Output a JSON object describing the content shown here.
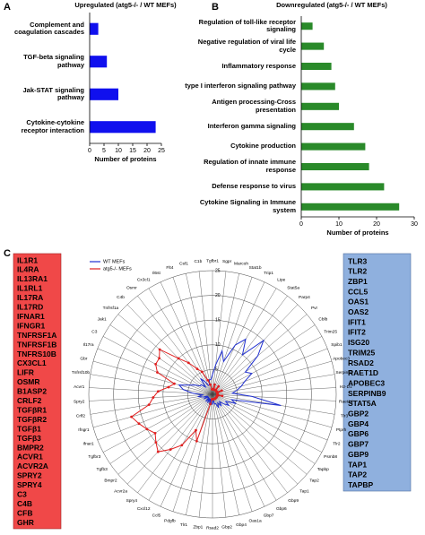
{
  "panels": [
    "A",
    "B",
    "C"
  ],
  "chart_data": [
    {
      "type": "barh",
      "title": "Upregulated (atg5-/- / WT MEFs)",
      "xlabel": "Number of proteins",
      "color": "#1010ee",
      "categories": [
        "Complement and coagulation cascades",
        "TGF-beta signaling pathway",
        "Jak-STAT signaling pathway",
        "Cytokine-cytokine receptor interaction"
      ],
      "values": [
        3,
        6,
        10,
        23
      ],
      "xlim": [
        0,
        25
      ],
      "xticks": [
        0,
        5,
        10,
        15,
        20,
        25
      ]
    },
    {
      "type": "barh",
      "title": "Downregulated (atg5-/- / WT MEFs)",
      "xlabel": "Number of proteins",
      "color": "#2a8a2a",
      "categories": [
        "Regulation of toll-like receptor signaling",
        "Negative regulation of viral life cycle",
        "Inflammatory response",
        "type I interferon signaling pathway",
        "Antigen processing-Cross presentation",
        "Interferon gamma signaling",
        "Cytokine production",
        "Regulation of innate immune response",
        "Defense response to virus",
        "Cytokine Signaling in Immune system"
      ],
      "values": [
        3,
        6,
        8,
        9,
        10,
        14,
        17,
        18,
        22,
        26
      ],
      "xlim": [
        0,
        30
      ],
      "xticks": [
        0,
        10,
        20,
        30
      ]
    },
    {
      "type": "radar",
      "ylim": [
        0,
        25
      ],
      "yticks": [
        0,
        5,
        10,
        15,
        20,
        25
      ],
      "legend": "top-left",
      "categories": [
        "Tgfbr1",
        "Sgpr",
        "Marcoh",
        "Stat1b",
        "Trip1",
        "Lipe",
        "Stat5a",
        "Parp4",
        "Pvr",
        "Cblb",
        "Trim25",
        "Spib1",
        "Apobec3",
        "Serpinb9",
        "H2-D1",
        "Raet1d",
        "Tlr3",
        "Ptprh",
        "Tlr2",
        "Psmb8",
        "Tapbp",
        "Tap2",
        "Tap1",
        "Gbp9",
        "Gbp6",
        "Gbp7",
        "Oas1a",
        "Gbp4",
        "Gbp2",
        "Rsad2",
        "Zbp1",
        "Tlr1",
        "Pdgfb",
        "Ccl5",
        "Cxcl12",
        "Spry4",
        "Acvr2a",
        "Bmpr2",
        "Tgfb3",
        "Tgfbr3",
        "Ifnar1",
        "Ifngr1",
        "Crlf2",
        "Spry2",
        "Acvr1",
        "Tnfrsf10b",
        "Gbr",
        "Il17ra",
        "C3",
        "Jak1",
        "Tnfrsf1a",
        "C4b",
        "Osmr",
        "Cx3cl1",
        "Il6st",
        "Flt4",
        "Csf1",
        "C1b"
      ],
      "series": [
        {
          "name": "WT MEFs",
          "color": "#2030d0",
          "marker": false,
          "values": [
            4,
            6,
            9,
            7,
            11,
            13,
            10,
            15,
            12,
            8,
            9,
            7,
            6,
            5,
            4,
            8,
            14,
            4,
            5,
            3,
            4,
            3,
            2,
            3,
            2,
            3,
            2,
            2,
            1,
            2,
            2,
            1,
            2,
            1,
            2,
            1,
            2,
            1,
            1,
            2,
            1,
            2,
            3,
            2,
            4,
            6,
            7,
            5,
            4,
            3,
            3,
            2,
            4,
            3,
            2,
            2,
            3,
            3
          ]
        },
        {
          "name": "atg5-/- MEFs",
          "color": "#e02020",
          "marker": true,
          "values": [
            1,
            1,
            2,
            1,
            1,
            1,
            2,
            1,
            1,
            1,
            1,
            2,
            1,
            1,
            1,
            1,
            2,
            1,
            1,
            1,
            1,
            1,
            1,
            1,
            1,
            1,
            1,
            1,
            1,
            1,
            1,
            2,
            10,
            8,
            12,
            14,
            16,
            15,
            14,
            15,
            16,
            17,
            13,
            12,
            11,
            9,
            8,
            12,
            13,
            13,
            14,
            10,
            8,
            6,
            5,
            3,
            2,
            1
          ]
        }
      ]
    }
  ],
  "gene_lists": {
    "left": [
      "IL1R1",
      "IL4RA",
      "IL13RA1",
      "IL1RL1",
      "IL17RA",
      "IL17RD",
      "IFNAR1",
      "IFNGR1",
      "TNFRSF1A",
      "TNFRSF1B",
      "TNFRS10B",
      "CX3CL1",
      "LIFR",
      "OSMR",
      "B1ASP2",
      "CRLF2",
      "TGFβR1",
      "TGFβR2",
      "TGFβ1",
      "TGFβ3",
      "BMPR2",
      "ACVR1",
      "ACVR2A",
      "SPRY2",
      "SPRY4",
      "C3",
      "C4B",
      "CFB",
      "GHR"
    ],
    "right": [
      "TLR3",
      "TLR2",
      "ZBP1",
      "CCL5",
      "OAS1",
      "OAS2",
      "IFIT1",
      "IFIT2",
      "ISG20",
      "TRIM25",
      "RSAD2",
      "RAET1D",
      "APOBEC3",
      "SERPINB9",
      "STAT5A",
      "GBP2",
      "GBP4",
      "GBP6",
      "GBP7",
      "GBP9",
      "TAP1",
      "TAP2",
      "TAPBP"
    ]
  }
}
